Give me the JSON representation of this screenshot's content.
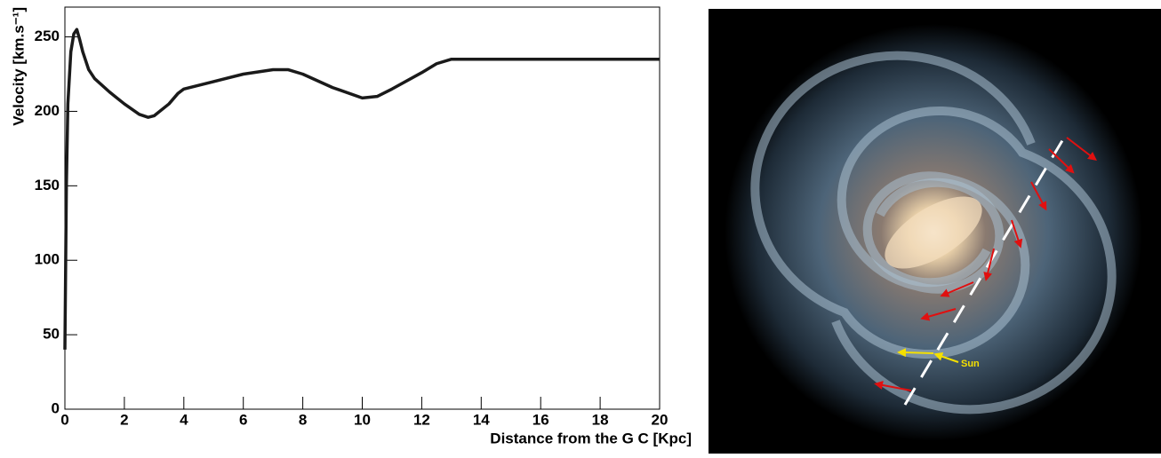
{
  "chart_data": {
    "type": "line",
    "x_label": "Distance  from  the G C  [Kpc]",
    "y_label": "Velocity  [km.s⁻¹]",
    "x": [
      0,
      0.05,
      0.1,
      0.2,
      0.3,
      0.4,
      0.5,
      0.6,
      0.8,
      1,
      1.5,
      2,
      2.5,
      2.8,
      3,
      3.5,
      3.8,
      4,
      5,
      6,
      7,
      7.5,
      8,
      9,
      10,
      10.5,
      11,
      12,
      12.5,
      13,
      13.2,
      20
    ],
    "series": [
      {
        "color": "#1a1a1a",
        "values": [
          40,
          150,
          205,
          240,
          252,
          255,
          248,
          240,
          228,
          222,
          213,
          205,
          198,
          196,
          197,
          205,
          212,
          215,
          220,
          225,
          228,
          228,
          225,
          216,
          209,
          210,
          215,
          226,
          232,
          235,
          235,
          235
        ]
      }
    ],
    "xlim": [
      0,
      20
    ],
    "ylim": [
      0,
      270
    ],
    "xticks": [
      0,
      2,
      4,
      6,
      8,
      10,
      12,
      14,
      16,
      18,
      20
    ],
    "yticks": [
      0,
      50,
      100,
      150,
      200,
      250
    ]
  },
  "image": {
    "label": "Sun"
  }
}
